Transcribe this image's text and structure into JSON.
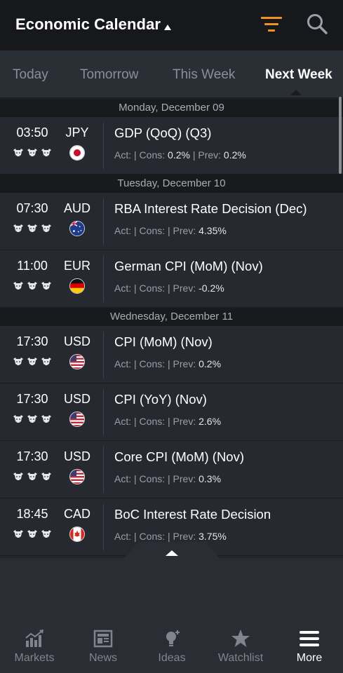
{
  "header": {
    "title": "Economic Calendar"
  },
  "tabs": [
    {
      "label": "Today"
    },
    {
      "label": "Tomorrow"
    },
    {
      "label": "This Week"
    },
    {
      "label": "Next Week",
      "active": true
    }
  ],
  "days": [
    {
      "date": "Monday, December 09",
      "events": [
        {
          "time": "03:50",
          "currency": "JPY",
          "flag": "jp",
          "name": "GDP (QoQ) (Q3)",
          "act_label": "Act:",
          "act": "",
          "cons_label": "| Cons:",
          "cons": "0.2%",
          "prev_label": "| Prev:",
          "prev": "0.2%"
        }
      ]
    },
    {
      "date": "Tuesday, December 10",
      "events": [
        {
          "time": "07:30",
          "currency": "AUD",
          "flag": "au",
          "name": "RBA Interest Rate Decision (Dec)",
          "act_label": "Act:",
          "act": "",
          "cons_label": "| Cons:",
          "cons": "",
          "prev_label": "| Prev:",
          "prev": "4.35%"
        },
        {
          "time": "11:00",
          "currency": "EUR",
          "flag": "de",
          "name": "German CPI (MoM) (Nov)",
          "act_label": "Act:",
          "act": "",
          "cons_label": "| Cons:",
          "cons": "",
          "prev_label": "| Prev:",
          "prev": "-0.2%"
        }
      ]
    },
    {
      "date": "Wednesday, December 11",
      "events": [
        {
          "time": "17:30",
          "currency": "USD",
          "flag": "us",
          "name": "CPI (MoM) (Nov)",
          "act_label": "Act:",
          "act": "",
          "cons_label": "| Cons:",
          "cons": "",
          "prev_label": "| Prev:",
          "prev": "0.2%"
        },
        {
          "time": "17:30",
          "currency": "USD",
          "flag": "us",
          "name": "CPI (YoY) (Nov)",
          "act_label": "Act:",
          "act": "",
          "cons_label": "| Cons:",
          "cons": "",
          "prev_label": "| Prev:",
          "prev": "2.6%"
        },
        {
          "time": "17:30",
          "currency": "USD",
          "flag": "us",
          "name": "Core CPI (MoM) (Nov)",
          "act_label": "Act:",
          "act": "",
          "cons_label": "| Cons:",
          "cons": "",
          "prev_label": "| Prev:",
          "prev": "0.3%"
        },
        {
          "time": "18:45",
          "currency": "CAD",
          "flag": "ca",
          "name": "BoC Interest Rate Decision",
          "act_label": "Act:",
          "act": "",
          "cons_label": "| Cons:",
          "cons": "",
          "prev_label": "| Prev:",
          "prev": "3.75%"
        }
      ]
    }
  ],
  "bottom_nav": [
    {
      "label": "Markets",
      "icon": "markets-icon"
    },
    {
      "label": "News",
      "icon": "news-icon"
    },
    {
      "label": "Ideas",
      "icon": "ideas-icon"
    },
    {
      "label": "Watchlist",
      "icon": "watchlist-icon"
    },
    {
      "label": "More",
      "icon": "more-icon",
      "active": true
    }
  ],
  "colors": {
    "accent": "#f29222",
    "background": "#23262c",
    "header_bg": "#16181c",
    "tab_bar_bg": "#2a2e35",
    "day_header_bg": "#181a1e"
  }
}
